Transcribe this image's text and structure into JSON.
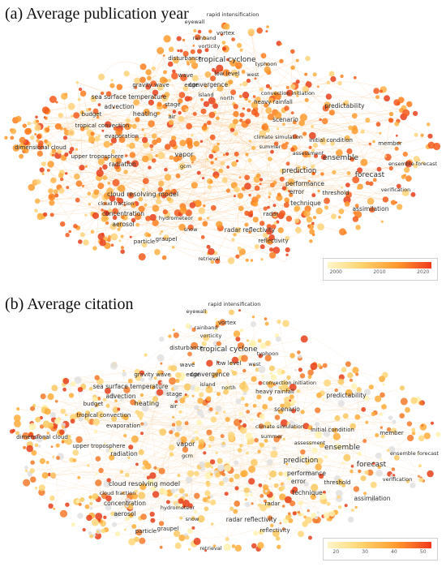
{
  "panels": [
    {
      "id": "a",
      "title": "(a) Average publication year",
      "colors": [
        "#ffd27a",
        "#ffb347",
        "#ff9b2e",
        "#ff7f1f",
        "#f55a1c",
        "#e8401a"
      ],
      "legend": {
        "gradient": [
          "#fff6c8",
          "#ffd36e",
          "#ff9a2e",
          "#f03a1c"
        ],
        "ticks": [
          "2000",
          "2010",
          "2020"
        ]
      }
    },
    {
      "id": "b",
      "title": "(b) Average citation",
      "colors": [
        "#fff2b0",
        "#ffd67a",
        "#f9c860",
        "#ffad3a",
        "#f47a2a",
        "#e8401a",
        "#e0e0e0"
      ],
      "legend": {
        "gradient": [
          "#fff6c8",
          "#ffd36e",
          "#ff9a2e",
          "#f03a1c"
        ],
        "ticks": [
          "20",
          "30",
          "40",
          "50"
        ]
      }
    }
  ],
  "keywords": [
    "rapid intensification",
    "eyewall",
    "vortex",
    "rainband",
    "vorticity",
    "disturbance",
    "tropical cyclone",
    "typhoon",
    "wave",
    "low level",
    "west",
    "gravity wave",
    "edge",
    "convergence",
    "sea surface temperature",
    "island",
    "north",
    "convection initiation",
    "advection",
    "stage",
    "heavy rainfall",
    "predictability",
    "budget",
    "heating",
    "air",
    "tropical convection",
    "scenario",
    "evaporation",
    "climate simulation",
    "initial condition",
    "member",
    "dimensional cloud",
    "upper troposphere",
    "vapor",
    "summer",
    "assessment",
    "ensemble",
    "ensemble forecast",
    "radiation",
    "gcm",
    "prediction",
    "forecast",
    "performance",
    "error",
    "threshold",
    "verification",
    "cloud resolving model",
    "cloud fraction",
    "technique",
    "assimilation",
    "concentration",
    "hydrometeor",
    "radar",
    "aerosol",
    "snow",
    "radar reflectivity",
    "particle",
    "graupel",
    "reflectivity",
    "retrieval"
  ]
}
